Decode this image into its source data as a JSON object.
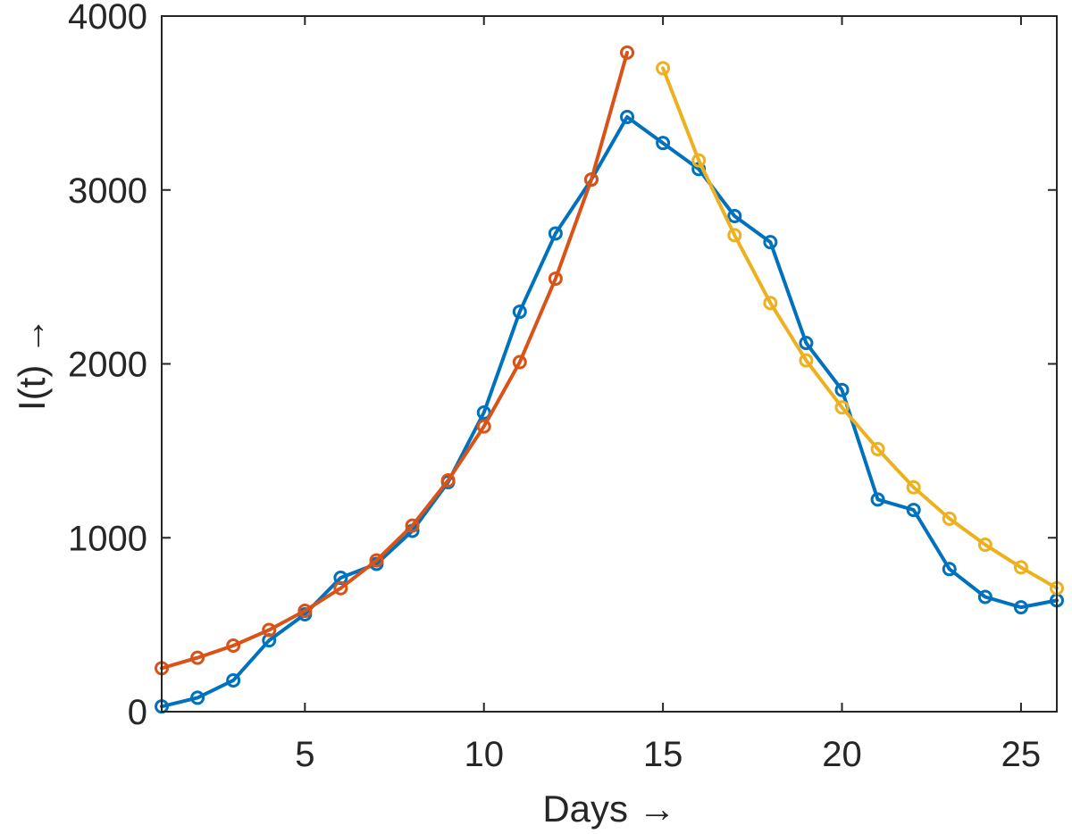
{
  "chart_data": {
    "type": "line",
    "title": "",
    "xlabel": "Days →",
    "ylabel": "I(t) →",
    "xlim": [
      1,
      26
    ],
    "ylim": [
      0,
      4000
    ],
    "xticks": [
      5,
      10,
      15,
      20,
      25
    ],
    "yticks": [
      0,
      1000,
      2000,
      3000,
      4000
    ],
    "grid": false,
    "box": true,
    "marker": "circle",
    "series": [
      {
        "color": "#0072BD",
        "x": [
          1,
          2,
          3,
          4,
          5,
          6,
          7,
          8,
          9,
          10,
          11,
          12,
          13,
          14,
          15,
          16,
          17,
          18,
          19,
          20,
          21,
          22,
          23,
          24,
          25,
          26
        ],
        "y": [
          30,
          80,
          180,
          410,
          560,
          770,
          850,
          1040,
          1320,
          1720,
          2300,
          2750,
          3060,
          3420,
          3270,
          3120,
          2850,
          2700,
          2120,
          1850,
          1220,
          1160,
          820,
          660,
          600,
          640
        ]
      },
      {
        "color": "#D95319",
        "x": [
          1,
          2,
          3,
          4,
          5,
          6,
          7,
          8,
          9,
          10,
          11,
          12,
          13,
          14
        ],
        "y": [
          250,
          310,
          380,
          470,
          580,
          710,
          870,
          1070,
          1330,
          1640,
          2010,
          2490,
          3060,
          3790
        ]
      },
      {
        "color": "#EDB120",
        "x": [
          15,
          16,
          17,
          18,
          19,
          20,
          21,
          22,
          23,
          24,
          25,
          26
        ],
        "y": [
          3700,
          3170,
          2740,
          2350,
          2020,
          1750,
          1510,
          1290,
          1110,
          960,
          830,
          710
        ]
      }
    ]
  }
}
